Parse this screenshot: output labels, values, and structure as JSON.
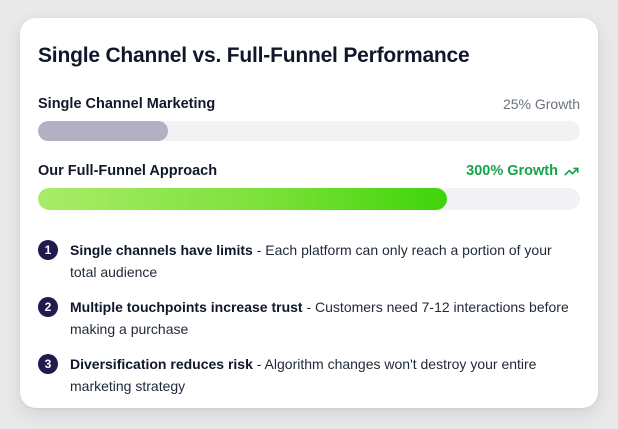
{
  "card": {
    "title": "Single Channel vs. Full-Funnel Performance",
    "bars": [
      {
        "label": "Single Channel Marketing",
        "growth_label": "25% Growth",
        "fill_percent": 24
      },
      {
        "label": "Our Full-Funnel Approach",
        "growth_label": "300% Growth",
        "trend_icon": "trending-up-icon",
        "fill_percent": 75.5
      }
    ],
    "bullets": [
      {
        "number": "1",
        "title": "Single channels have limits",
        "text": " - Each platform can only reach a portion of your total audience"
      },
      {
        "number": "2",
        "title": "Multiple touchpoints increase trust",
        "text": " - Customers need 7-12 interactions before making a purchase"
      },
      {
        "number": "3",
        "title": "Diversification reduces risk",
        "text": " - Algorithm changes won't destroy your entire marketing strategy"
      }
    ]
  },
  "colors": {
    "page_background": "#e9e9ea",
    "card_background": "#ffffff",
    "title_text": "#0f172a",
    "muted_text": "#6b7280",
    "accent_green": "#16a34a",
    "bar_track": "#f2f2f4",
    "bar_fill_gray": "#b5afc2",
    "bar_fill_green_start": "#a9ec69",
    "bar_fill_green_end": "#3fd40a",
    "badge_background": "#211a4d"
  }
}
